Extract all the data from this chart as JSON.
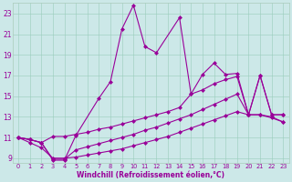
{
  "xlabel": "Windchill (Refroidissement éolien,°C)",
  "bg_color": "#cce8e8",
  "grid_color": "#99ccbb",
  "line_color": "#990099",
  "xlim": [
    -0.5,
    23.5
  ],
  "ylim": [
    8.5,
    24.0
  ],
  "yticks": [
    9,
    11,
    13,
    15,
    17,
    19,
    21,
    23
  ],
  "xticks": [
    0,
    1,
    2,
    3,
    4,
    5,
    6,
    7,
    8,
    9,
    10,
    11,
    12,
    13,
    14,
    15,
    16,
    17,
    18,
    19,
    20,
    21,
    22,
    23
  ],
  "line1_x": [
    0,
    1,
    2,
    3,
    4,
    5,
    7,
    8,
    9,
    10,
    11,
    12,
    14,
    15,
    16,
    17,
    18,
    19,
    20,
    21,
    22,
    23
  ],
  "line1_y": [
    11.0,
    10.8,
    10.5,
    8.8,
    8.8,
    11.2,
    14.8,
    16.4,
    21.5,
    23.8,
    19.8,
    19.2,
    22.6,
    15.2,
    17.1,
    18.2,
    17.1,
    17.2,
    13.2,
    17.0,
    13.2,
    13.2
  ],
  "line2_x": [
    0,
    1,
    2,
    3,
    4,
    5,
    6,
    7,
    8,
    9,
    10,
    11,
    12,
    13,
    14,
    15,
    16,
    17,
    18,
    19,
    20,
    21,
    22,
    23
  ],
  "line2_y": [
    11.0,
    10.8,
    10.5,
    11.1,
    11.1,
    11.3,
    11.5,
    11.8,
    12.0,
    12.3,
    12.6,
    12.9,
    13.2,
    13.5,
    13.9,
    15.2,
    15.6,
    16.2,
    16.6,
    16.9,
    13.2,
    17.0,
    13.2,
    13.2
  ],
  "line3_x": [
    0,
    1,
    2,
    3,
    4,
    5,
    6,
    7,
    8,
    9,
    10,
    11,
    12,
    13,
    14,
    15,
    16,
    17,
    18,
    19,
    20,
    21,
    22,
    23
  ],
  "line3_y": [
    11.0,
    10.8,
    10.5,
    8.9,
    8.9,
    9.8,
    10.1,
    10.4,
    10.7,
    11.0,
    11.3,
    11.7,
    12.0,
    12.4,
    12.8,
    13.2,
    13.7,
    14.2,
    14.7,
    15.2,
    13.2,
    13.2,
    13.0,
    12.5
  ],
  "line4_x": [
    0,
    1,
    2,
    3,
    4,
    5,
    6,
    7,
    8,
    9,
    10,
    11,
    12,
    13,
    14,
    15,
    16,
    17,
    18,
    19,
    20,
    21,
    22,
    23
  ],
  "line4_y": [
    11.0,
    10.5,
    10.0,
    9.0,
    9.0,
    9.1,
    9.3,
    9.5,
    9.7,
    9.9,
    10.2,
    10.5,
    10.8,
    11.1,
    11.5,
    11.9,
    12.3,
    12.7,
    13.1,
    13.5,
    13.2,
    13.2,
    12.9,
    12.5
  ]
}
